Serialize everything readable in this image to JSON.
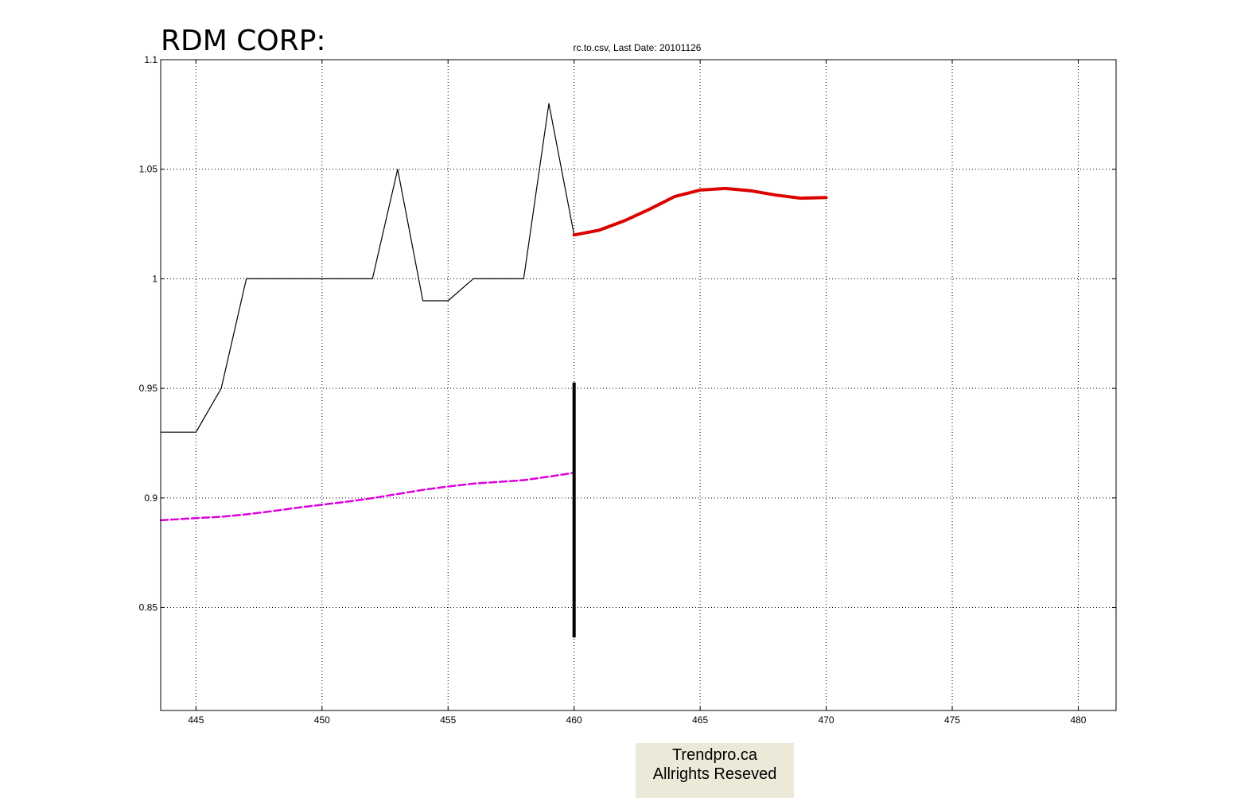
{
  "title": "RDM CORP:",
  "subtitle": "rc.to.csv, Last Date: 20101126",
  "footer": {
    "line1": "Trendpro.ca",
    "line2": "Allrights Reseved"
  },
  "chart_data": {
    "type": "line",
    "title": "RDM CORP:",
    "subtitle": "rc.to.csv, Last Date: 20101126",
    "xlabel": "",
    "ylabel": "",
    "xlim": [
      443.6,
      481.5
    ],
    "ylim": [
      0.803,
      1.1
    ],
    "grid": true,
    "xticks": [
      445,
      450,
      455,
      460,
      465,
      470,
      475,
      480
    ],
    "yticks": [
      0.85,
      0.9,
      0.95,
      1,
      1.05,
      1.1
    ],
    "xtick_labels": [
      "445",
      "450",
      "455",
      "460",
      "465",
      "470",
      "475",
      "480"
    ],
    "ytick_labels": [
      "0.85",
      "0.9",
      "0.95",
      "1",
      "1.05",
      "1.1"
    ],
    "colors": {
      "price": "#000000",
      "forecast": "#dd0000",
      "trend": "#dd00dd",
      "marker": "#000000"
    },
    "series": [
      {
        "key": "price",
        "style": "solid",
        "x": [
          443.6,
          445,
          446,
          447,
          448,
          449,
          450,
          451,
          452,
          453,
          454,
          455,
          456,
          457,
          458,
          459,
          460
        ],
        "y": [
          0.93,
          0.93,
          0.95,
          1.0,
          1.0,
          1.0,
          1.0,
          1.0,
          1.0,
          1.05,
          0.99,
          0.99,
          1.0,
          1.0,
          1.0,
          1.08,
          1.02
        ]
      },
      {
        "key": "forecast",
        "style": "solid-thick",
        "x": [
          460,
          461,
          462,
          463,
          464,
          465,
          466,
          467,
          468,
          469,
          470
        ],
        "y": [
          1.02,
          1.0222,
          1.0265,
          1.0318,
          1.0376,
          1.0405,
          1.0412,
          1.0402,
          1.0382,
          1.0368,
          1.0371
        ]
      },
      {
        "key": "trend",
        "style": "dashed",
        "x": [
          443.6,
          445,
          446,
          447,
          448,
          449,
          450,
          451,
          452,
          453,
          454,
          455,
          456,
          457,
          458,
          459,
          460
        ],
        "y": [
          0.8898,
          0.8908,
          0.8914,
          0.8925,
          0.8939,
          0.8955,
          0.8969,
          0.8983,
          0.8999,
          0.9018,
          0.9037,
          0.9052,
          0.9065,
          0.9073,
          0.9081,
          0.9097,
          0.9115
        ]
      }
    ],
    "vline": {
      "x": 460,
      "y_from": 0.8363,
      "y_to": 0.9527
    }
  }
}
